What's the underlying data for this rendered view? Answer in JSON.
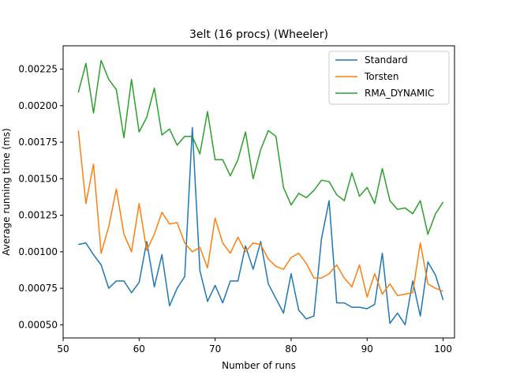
{
  "chart_data": {
    "type": "line",
    "title": "3elt (16 procs) (Wheeler)",
    "xlabel": "Number of runs",
    "ylabel": "Average running time (ms)",
    "xlim": [
      50,
      101.5
    ],
    "ylim": [
      0.00041,
      0.00241
    ],
    "xticks": [
      50,
      60,
      70,
      80,
      90,
      100
    ],
    "xtick_labels": [
      "50",
      "60",
      "70",
      "80",
      "90",
      "100"
    ],
    "yticks": [
      0.0005,
      0.00075,
      0.001,
      0.00125,
      0.0015,
      0.00175,
      0.002,
      0.00225
    ],
    "ytick_labels": [
      "0.00050",
      "0.00075",
      "0.00100",
      "0.00125",
      "0.00150",
      "0.00175",
      "0.00200",
      "0.00225"
    ],
    "grid": false,
    "legend_position": "top-right",
    "x": [
      52,
      53,
      54,
      55,
      56,
      57,
      58,
      59,
      60,
      61,
      62,
      63,
      64,
      65,
      66,
      67,
      68,
      69,
      70,
      71,
      72,
      73,
      74,
      75,
      76,
      77,
      78,
      79,
      80,
      81,
      82,
      83,
      84,
      85,
      86,
      87,
      88,
      89,
      90,
      91,
      92,
      93,
      94,
      95,
      96,
      97,
      98,
      99,
      100
    ],
    "series": [
      {
        "name": "Standard",
        "color": "#1f77b4",
        "values": [
          0.00105,
          0.00106,
          0.00098,
          0.00091,
          0.00075,
          0.0008,
          0.0008,
          0.00072,
          0.00079,
          0.00107,
          0.00076,
          0.00098,
          0.00063,
          0.00075,
          0.00083,
          0.00185,
          0.00087,
          0.00066,
          0.00077,
          0.00065,
          0.0008,
          0.0008,
          0.00104,
          0.00088,
          0.00107,
          0.00078,
          0.00068,
          0.00058,
          0.00085,
          0.0006,
          0.00054,
          0.00056,
          0.00109,
          0.00135,
          0.00065,
          0.00065,
          0.00062,
          0.00062,
          0.00061,
          0.00064,
          0.00099,
          0.00051,
          0.00058,
          0.0005,
          0.0008,
          0.00056,
          0.00093,
          0.00084,
          0.00067
        ]
      },
      {
        "name": "Torsten",
        "color": "#ff7f0e",
        "values": [
          0.00183,
          0.00133,
          0.0016,
          0.00099,
          0.00117,
          0.00143,
          0.00112,
          0.001,
          0.00133,
          0.00101,
          0.00112,
          0.00127,
          0.00119,
          0.0012,
          0.00106,
          0.001,
          0.00103,
          0.00089,
          0.00123,
          0.00106,
          0.00099,
          0.0011,
          0.001,
          0.00106,
          0.00105,
          0.00095,
          0.0009,
          0.00088,
          0.00096,
          0.00099,
          0.00092,
          0.00082,
          0.00082,
          0.00085,
          0.00091,
          0.00082,
          0.00076,
          0.00091,
          0.00069,
          0.00085,
          0.00071,
          0.00078,
          0.0007,
          0.00071,
          0.00072,
          0.00106,
          0.00078,
          0.00075,
          0.00073
        ]
      },
      {
        "name": "RMA_DYNAMIC",
        "color": "#2ca02c",
        "values": [
          0.00209,
          0.00229,
          0.00195,
          0.00231,
          0.00218,
          0.00211,
          0.00178,
          0.00218,
          0.00182,
          0.00192,
          0.00212,
          0.0018,
          0.00184,
          0.00173,
          0.00179,
          0.00179,
          0.00167,
          0.00196,
          0.00163,
          0.00163,
          0.00152,
          0.00163,
          0.00182,
          0.0015,
          0.0017,
          0.00183,
          0.00179,
          0.00144,
          0.00132,
          0.0014,
          0.00137,
          0.00142,
          0.00149,
          0.00148,
          0.00139,
          0.00135,
          0.00154,
          0.00138,
          0.00144,
          0.00133,
          0.00157,
          0.00135,
          0.00129,
          0.0013,
          0.00126,
          0.00135,
          0.00112,
          0.00126,
          0.00134
        ]
      }
    ]
  }
}
